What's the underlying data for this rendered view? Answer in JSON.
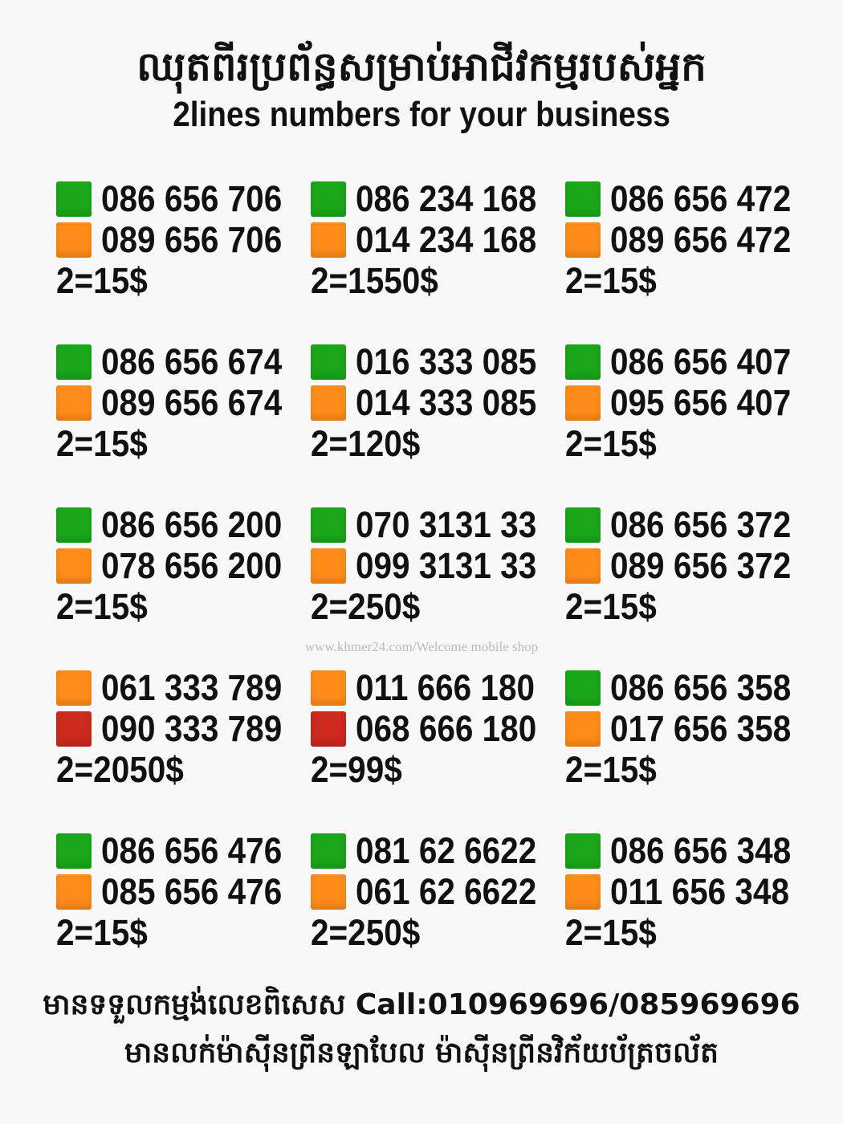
{
  "header": {
    "title_km": "ឈុតពីរប្រព័ន្ធសម្រាប់អាជីវកម្មរបស់អ្នក",
    "title_en": "2lines numbers for your business"
  },
  "colors": {
    "green": "#1aa81a",
    "orange": "#ff8c1a",
    "red": "#cc2a1e"
  },
  "sets": [
    {
      "lines": [
        {
          "color": "green",
          "number": "086 656 706"
        },
        {
          "color": "orange",
          "number": "089 656 706"
        }
      ],
      "price": "2=15$"
    },
    {
      "lines": [
        {
          "color": "green",
          "number": "086 234 168"
        },
        {
          "color": "orange",
          "number": "014 234 168"
        }
      ],
      "price": "2=1550$"
    },
    {
      "lines": [
        {
          "color": "green",
          "number": "086 656 472"
        },
        {
          "color": "orange",
          "number": "089 656 472"
        }
      ],
      "price": "2=15$"
    },
    {
      "lines": [
        {
          "color": "green",
          "number": "086 656 674"
        },
        {
          "color": "orange",
          "number": "089 656 674"
        }
      ],
      "price": "2=15$"
    },
    {
      "lines": [
        {
          "color": "green",
          "number": "016 333 085"
        },
        {
          "color": "orange",
          "number": "014 333 085"
        }
      ],
      "price": "2=120$"
    },
    {
      "lines": [
        {
          "color": "green",
          "number": "086 656 407"
        },
        {
          "color": "orange",
          "number": "095 656 407"
        }
      ],
      "price": "2=15$"
    },
    {
      "lines": [
        {
          "color": "green",
          "number": "086 656 200"
        },
        {
          "color": "orange",
          "number": "078 656 200"
        }
      ],
      "price": "2=15$"
    },
    {
      "lines": [
        {
          "color": "green",
          "number": "070 3131 33"
        },
        {
          "color": "orange",
          "number": "099 3131 33"
        }
      ],
      "price": "2=250$"
    },
    {
      "lines": [
        {
          "color": "green",
          "number": "086 656 372"
        },
        {
          "color": "orange",
          "number": "089 656 372"
        }
      ],
      "price": "2=15$"
    },
    {
      "lines": [
        {
          "color": "orange",
          "number": "061 333 789"
        },
        {
          "color": "red",
          "number": "090 333 789"
        }
      ],
      "price": "2=2050$"
    },
    {
      "lines": [
        {
          "color": "orange",
          "number": "011 666 180"
        },
        {
          "color": "red",
          "number": "068 666 180"
        }
      ],
      "price": "2=99$"
    },
    {
      "lines": [
        {
          "color": "green",
          "number": "086 656 358"
        },
        {
          "color": "orange",
          "number": "017 656 358"
        }
      ],
      "price": "2=15$"
    },
    {
      "lines": [
        {
          "color": "green",
          "number": "086 656 476"
        },
        {
          "color": "orange",
          "number": "085 656 476"
        }
      ],
      "price": "2=15$"
    },
    {
      "lines": [
        {
          "color": "green",
          "number": "081 62 6622"
        },
        {
          "color": "orange",
          "number": "061 62 6622"
        }
      ],
      "price": "2=250$"
    },
    {
      "lines": [
        {
          "color": "green",
          "number": "086 656 348"
        },
        {
          "color": "orange",
          "number": "011 656 348"
        }
      ],
      "price": "2=15$"
    }
  ],
  "watermark": "www.khmer24.com/Welcome mobile shop",
  "footer": {
    "line1": "មានទទួលកម្មង់លេខពិសេស Call:010969696/085969696",
    "line2": "មានលក់ម៉ាស៊ីនព្រីនឡាបែល ម៉ាស៊ីនព្រីនវិក័យប័ត្រចល័ត"
  }
}
